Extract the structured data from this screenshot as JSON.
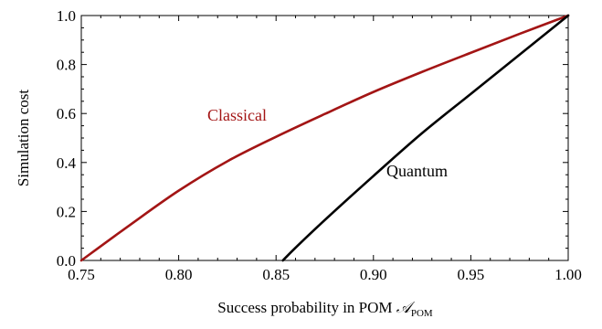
{
  "chart_data": {
    "type": "line",
    "xlabel": "Success probability in POM ",
    "xlabel_math": "𝒜",
    "xlabel_sub": "POM",
    "ylabel": "Simulation cost",
    "xlim": [
      0.75,
      1.0
    ],
    "ylim": [
      0.0,
      1.0
    ],
    "x_ticks": [
      "0.75",
      "0.80",
      "0.85",
      "0.90",
      "0.95",
      "1.00"
    ],
    "y_ticks": [
      "0.0",
      "0.2",
      "0.4",
      "0.6",
      "0.8",
      "1.0"
    ],
    "grid": false,
    "series": [
      {
        "name": "Classical",
        "color": "#a31515",
        "x": [
          0.75,
          0.775,
          0.8,
          0.825,
          0.85,
          0.875,
          0.9,
          0.925,
          0.95,
          0.975,
          1.0
        ],
        "y": [
          0.0,
          0.145,
          0.285,
          0.405,
          0.505,
          0.598,
          0.688,
          0.77,
          0.848,
          0.925,
          1.0
        ]
      },
      {
        "name": "Quantum",
        "color": "#000000",
        "x": [
          0.8535,
          0.86,
          0.875,
          0.9,
          0.925,
          0.95,
          0.975,
          1.0
        ],
        "y": [
          0.0,
          0.052,
          0.165,
          0.345,
          0.52,
          0.68,
          0.84,
          1.0
        ]
      }
    ]
  }
}
